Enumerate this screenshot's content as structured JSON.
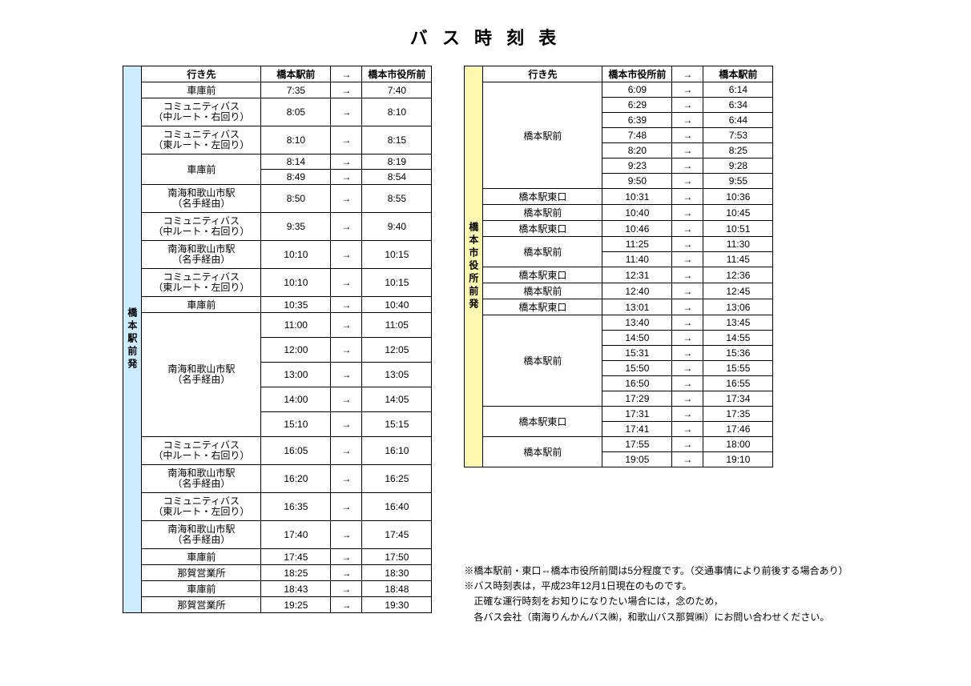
{
  "title": "バ ス 時 刻 表",
  "arrow": "→",
  "leftTable": {
    "originLabel": "橋本駅前発",
    "originColor": "#cdecff",
    "headers": {
      "dest": "行き先",
      "from": "橋本駅前",
      "to": "橋本市役所前"
    },
    "rows": [
      {
        "dest": "車庫前",
        "span": 1,
        "times": [
          [
            "7:35",
            "7:40"
          ]
        ]
      },
      {
        "dest": "コミュニティバス\n（中ルート・右回り）",
        "span": 1,
        "times": [
          [
            "8:05",
            "8:10"
          ]
        ]
      },
      {
        "dest": "コミュニティバス\n（東ルート・左回り）",
        "span": 1,
        "times": [
          [
            "8:10",
            "8:15"
          ]
        ]
      },
      {
        "dest": "車庫前",
        "span": 2,
        "times": [
          [
            "8:14",
            "8:19"
          ],
          [
            "8:49",
            "8:54"
          ]
        ]
      },
      {
        "dest": "南海和歌山市駅\n（名手経由）",
        "span": 1,
        "times": [
          [
            "8:50",
            "8:55"
          ]
        ]
      },
      {
        "dest": "コミュニティバス\n（中ルート・右回り）",
        "span": 1,
        "times": [
          [
            "9:35",
            "9:40"
          ]
        ]
      },
      {
        "dest": "南海和歌山市駅\n（名手経由）",
        "span": 1,
        "times": [
          [
            "10:10",
            "10:15"
          ]
        ]
      },
      {
        "dest": "コミュニティバス\n（東ルート・左回り）",
        "span": 1,
        "times": [
          [
            "10:10",
            "10:15"
          ]
        ]
      },
      {
        "dest": "車庫前",
        "span": 1,
        "times": [
          [
            "10:35",
            "10:40"
          ]
        ]
      },
      {
        "dest": "南海和歌山市駅\n（名手経由）",
        "span": 5,
        "times": [
          [
            "11:00",
            "11:05"
          ],
          [
            "12:00",
            "12:05"
          ],
          [
            "13:00",
            "13:05"
          ],
          [
            "14:00",
            "14:05"
          ],
          [
            "15:10",
            "15:15"
          ]
        ]
      },
      {
        "dest": "コミュニティバス\n（中ルート・右回り）",
        "span": 1,
        "times": [
          [
            "16:05",
            "16:10"
          ]
        ]
      },
      {
        "dest": "南海和歌山市駅\n（名手経由）",
        "span": 1,
        "times": [
          [
            "16:20",
            "16:25"
          ]
        ]
      },
      {
        "dest": "コミュニティバス\n（東ルート・左回り）",
        "span": 1,
        "times": [
          [
            "16:35",
            "16:40"
          ]
        ]
      },
      {
        "dest": "南海和歌山市駅\n（名手経由）",
        "span": 1,
        "times": [
          [
            "17:40",
            "17:45"
          ]
        ]
      },
      {
        "dest": "車庫前",
        "span": 1,
        "times": [
          [
            "17:45",
            "17:50"
          ]
        ]
      },
      {
        "dest": "那賀営業所",
        "span": 1,
        "times": [
          [
            "18:25",
            "18:30"
          ]
        ]
      },
      {
        "dest": "車庫前",
        "span": 1,
        "times": [
          [
            "18:43",
            "18:48"
          ]
        ]
      },
      {
        "dest": "那賀営業所",
        "span": 1,
        "times": [
          [
            "19:25",
            "19:30"
          ]
        ]
      }
    ]
  },
  "rightTable": {
    "originLabel": "橋本市役所前発",
    "originColor": "#fcf8b0",
    "headers": {
      "dest": "行き先",
      "from": "橋本市役所前",
      "to": "橋本駅前"
    },
    "rows": [
      {
        "dest": "橋本駅前",
        "span": 7,
        "times": [
          [
            "6:09",
            "6:14"
          ],
          [
            "6:29",
            "6:34"
          ],
          [
            "6:39",
            "6:44"
          ],
          [
            "7:48",
            "7:53"
          ],
          [
            "8:20",
            "8:25"
          ],
          [
            "9:23",
            "9:28"
          ],
          [
            "9:50",
            "9:55"
          ]
        ]
      },
      {
        "dest": "橋本駅東口",
        "span": 1,
        "times": [
          [
            "10:31",
            "10:36"
          ]
        ]
      },
      {
        "dest": "橋本駅前",
        "span": 1,
        "times": [
          [
            "10:40",
            "10:45"
          ]
        ]
      },
      {
        "dest": "橋本駅東口",
        "span": 1,
        "times": [
          [
            "10:46",
            "10:51"
          ]
        ]
      },
      {
        "dest": "橋本駅前",
        "span": 2,
        "times": [
          [
            "11:25",
            "11:30"
          ],
          [
            "11:40",
            "11:45"
          ]
        ]
      },
      {
        "dest": "橋本駅東口",
        "span": 1,
        "times": [
          [
            "12:31",
            "12:36"
          ]
        ]
      },
      {
        "dest": "橋本駅前",
        "span": 1,
        "times": [
          [
            "12:40",
            "12:45"
          ]
        ]
      },
      {
        "dest": "橋本駅東口",
        "span": 1,
        "times": [
          [
            "13:01",
            "13:06"
          ]
        ]
      },
      {
        "dest": "橋本駅前",
        "span": 6,
        "times": [
          [
            "13:40",
            "13:45"
          ],
          [
            "14:50",
            "14:55"
          ],
          [
            "15:31",
            "15:36"
          ],
          [
            "15:50",
            "15:55"
          ],
          [
            "16:50",
            "16:55"
          ],
          [
            "17:29",
            "17:34"
          ]
        ]
      },
      {
        "dest": "橋本駅東口",
        "span": 2,
        "times": [
          [
            "17:31",
            "17:35"
          ],
          [
            "17:41",
            "17:46"
          ]
        ]
      },
      {
        "dest": "橋本駅前",
        "span": 2,
        "times": [
          [
            "17:55",
            "18:00"
          ],
          [
            "19:05",
            "19:10"
          ]
        ]
      }
    ]
  },
  "notes": [
    "※橋本駅前・東口⇔橋本市役所前間は5分程度です。（交通事情により前後する場合あり）",
    "※バス時刻表は，平成23年12月1日現在のものです。",
    "　正確な運行時刻をお知りになりたい場合には，念のため，",
    "　各バス会社（南海りんかんバス㈱，和歌山バス那賀㈱）にお問い合わせください。"
  ]
}
